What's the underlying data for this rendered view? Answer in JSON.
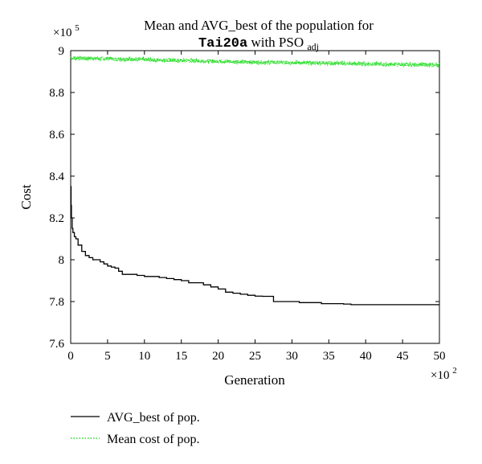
{
  "chart_data": {
    "type": "line",
    "title_line1": "Mean and AVG_best of the population for",
    "title_line2_code": "Tai20a",
    "title_line2_text": "with PSO",
    "title_line2_subscript": "adj",
    "xlabel": "Generation",
    "ylabel": "Cost",
    "x_multiplier_base": "×10",
    "x_multiplier_exp": "2",
    "y_multiplier_base": "×10",
    "y_multiplier_exp": "5",
    "xlim": [
      0,
      50
    ],
    "ylim": [
      7.6,
      9.0
    ],
    "x_ticks": [
      "0",
      "5",
      "10",
      "15",
      "20",
      "25",
      "30",
      "35",
      "40",
      "45",
      "50"
    ],
    "y_ticks": [
      "7.6",
      "7.8",
      "8",
      "8.2",
      "8.4",
      "8.6",
      "8.8",
      "9"
    ],
    "grid": false,
    "legend_position": "bottom-left, below the plot",
    "series": [
      {
        "name": "AVG_best of pop.",
        "color": "#000000",
        "style": "solid",
        "x": [
          0,
          0.05,
          0.1,
          0.2,
          0.3,
          0.5,
          0.7,
          1.0,
          1.5,
          2.0,
          2.5,
          3.0,
          3.5,
          4.0,
          4.5,
          5.0,
          5.5,
          6.0,
          6.5,
          7.0,
          8.0,
          9.0,
          10.0,
          11.0,
          12.0,
          13.0,
          14.0,
          15.0,
          16.0,
          17.0,
          18.0,
          19.0,
          20.0,
          21.0,
          22.0,
          23.0,
          24.0,
          25.0,
          26.0,
          27.0,
          27.5,
          28.0,
          29.0,
          30.0,
          31.0,
          32.0,
          33.0,
          34.0,
          35.0,
          36.0,
          37.0,
          38.0,
          40.0,
          45.0,
          50.0
        ],
        "y": [
          8.35,
          8.26,
          8.2,
          8.15,
          8.13,
          8.11,
          8.1,
          8.07,
          8.04,
          8.02,
          8.01,
          8.0,
          8.0,
          7.99,
          7.98,
          7.97,
          7.965,
          7.96,
          7.945,
          7.93,
          7.93,
          7.925,
          7.92,
          7.92,
          7.915,
          7.91,
          7.905,
          7.9,
          7.89,
          7.89,
          7.88,
          7.87,
          7.86,
          7.845,
          7.84,
          7.835,
          7.83,
          7.826,
          7.825,
          7.825,
          7.8,
          7.8,
          7.8,
          7.8,
          7.795,
          7.795,
          7.795,
          7.79,
          7.79,
          7.79,
          7.788,
          7.785,
          7.785,
          7.785,
          7.785
        ]
      },
      {
        "name": "Mean cost of pop.",
        "color": "#22dd22",
        "style": "dotted",
        "x": [
          0,
          5,
          10,
          15,
          20,
          25,
          30,
          35,
          40,
          45,
          50
        ],
        "y": [
          8.965,
          8.962,
          8.957,
          8.953,
          8.949,
          8.945,
          8.943,
          8.94,
          8.937,
          8.934,
          8.932
        ]
      }
    ]
  }
}
